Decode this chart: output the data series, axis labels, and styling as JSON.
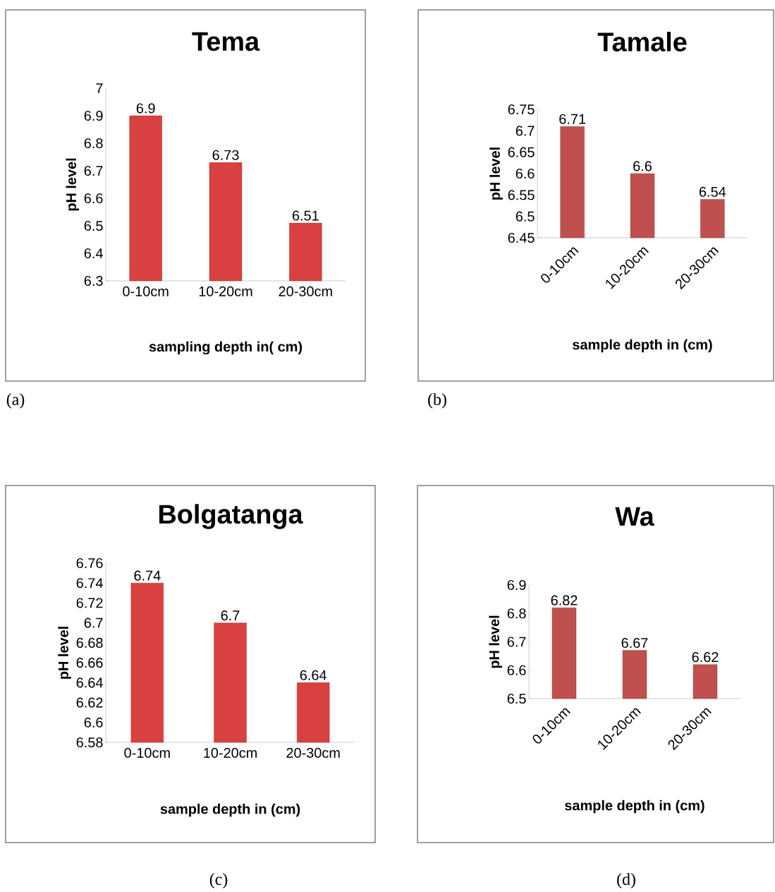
{
  "chart_data": [
    {
      "type": "bar",
      "title": "Tema",
      "xlabel": "sampling depth in( cm)",
      "ylabel": "pH level",
      "categories": [
        "0-10cm",
        "10-20cm",
        "20-30cm"
      ],
      "values": [
        6.9,
        6.73,
        6.51
      ],
      "color": "#d94040",
      "ylim": [
        6.3,
        7
      ],
      "yticks": [
        6.3,
        6.4,
        6.5,
        6.6,
        6.7,
        6.8,
        6.9,
        7
      ],
      "data_labels": true,
      "annotations": [
        "(a)"
      ]
    },
    {
      "type": "bar",
      "title": "Tamale",
      "xlabel": "sample depth in (cm)",
      "ylabel": "pH level",
      "categories": [
        "0-10cm",
        "10-20cm",
        "20-30cm"
      ],
      "values": [
        6.71,
        6.6,
        6.54
      ],
      "color": "#c0504d",
      "ylim": [
        6.45,
        6.75
      ],
      "yticks": [
        6.45,
        6.5,
        6.55,
        6.6,
        6.65,
        6.7,
        6.75
      ],
      "data_labels": true,
      "annotations": [
        "(b)"
      ]
    },
    {
      "type": "bar",
      "title": "Bolgatanga",
      "xlabel": "sample  depth in (cm)",
      "ylabel": "pH level",
      "categories": [
        "0-10cm",
        "10-20cm",
        "20-30cm"
      ],
      "values": [
        6.74,
        6.7,
        6.64
      ],
      "color": "#d94040",
      "ylim": [
        6.58,
        6.76
      ],
      "yticks": [
        6.58,
        6.6,
        6.62,
        6.64,
        6.66,
        6.68,
        6.7,
        6.72,
        6.74,
        6.76
      ],
      "data_labels": true,
      "annotations": [
        "(c)"
      ]
    },
    {
      "type": "bar",
      "title": "Wa",
      "xlabel": "sample depth in (cm)",
      "ylabel": "pH level",
      "categories": [
        "0-10cm",
        "10-20cm",
        "20-30cm"
      ],
      "values": [
        6.82,
        6.67,
        6.62
      ],
      "color": "#c0504d",
      "ylim": [
        6.5,
        6.9
      ],
      "yticks": [
        6.5,
        6.6,
        6.7,
        6.8,
        6.9
      ],
      "data_labels": true,
      "annotations": [
        "(d)"
      ]
    }
  ]
}
